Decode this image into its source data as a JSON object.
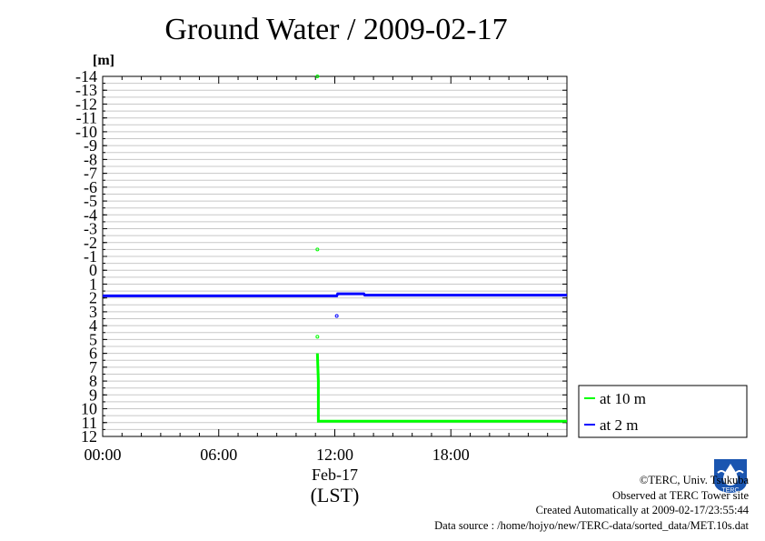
{
  "title": "Ground Water / 2009-02-17",
  "chart_data": {
    "type": "line",
    "title": "Ground Water / 2009-02-17",
    "ylabel": "[m]",
    "y_inverted": true,
    "ylim": [
      -14,
      12
    ],
    "yticks": [
      "-14",
      "-13",
      "-12",
      "-11",
      "-10",
      "-9",
      "-8",
      "-7",
      "-6",
      "-5",
      "-4",
      "-3",
      "-2",
      "-1",
      "0",
      "1",
      "2",
      "3",
      "4",
      "5",
      "6",
      "7",
      "8",
      "9",
      "10",
      "11",
      "12"
    ],
    "xlim": [
      0,
      24
    ],
    "xticks": [
      {
        "value": 0,
        "label": "00:00"
      },
      {
        "value": 6,
        "label": "06:00"
      },
      {
        "value": 12,
        "label": "12:00"
      },
      {
        "value": 18,
        "label": "18:00"
      }
    ],
    "xdate": "Feb-17",
    "xunit": "(LST)",
    "grid": true,
    "legend_position": "right",
    "series": [
      {
        "name": "at 10 m",
        "color": "#00ff00",
        "points": [
          [
            11.1,
            -14
          ],
          [
            11.1,
            -1.5
          ],
          [
            11.1,
            4.8
          ],
          [
            11.1,
            6.0
          ],
          [
            11.15,
            8
          ],
          [
            11.15,
            10.9
          ],
          [
            11.2,
            10.9
          ],
          [
            24,
            10.9
          ]
        ]
      },
      {
        "name": "at 2 m",
        "color": "#0000ff",
        "points": [
          [
            0,
            1.85
          ],
          [
            12.1,
            1.85
          ],
          [
            12.15,
            1.7
          ],
          [
            13.5,
            1.7
          ],
          [
            13.55,
            1.8
          ],
          [
            24,
            1.8
          ],
          [
            12.1,
            3.3
          ]
        ]
      }
    ]
  },
  "footer": {
    "copyright": "©TERC, Univ. Tsukuba",
    "observed": "Observed at TERC Tower site",
    "created": "Created Automatically at 2009-02-17/23:55:44",
    "source": "Data source : /home/hojyo/new/TERC-data/sorted_data/MET.10s.dat"
  },
  "logo_text": "TERC",
  "colors": {
    "grid": "#c8c8c8",
    "axis": "#000000",
    "series_10m": "#00ff00",
    "series_2m": "#0000ff"
  }
}
